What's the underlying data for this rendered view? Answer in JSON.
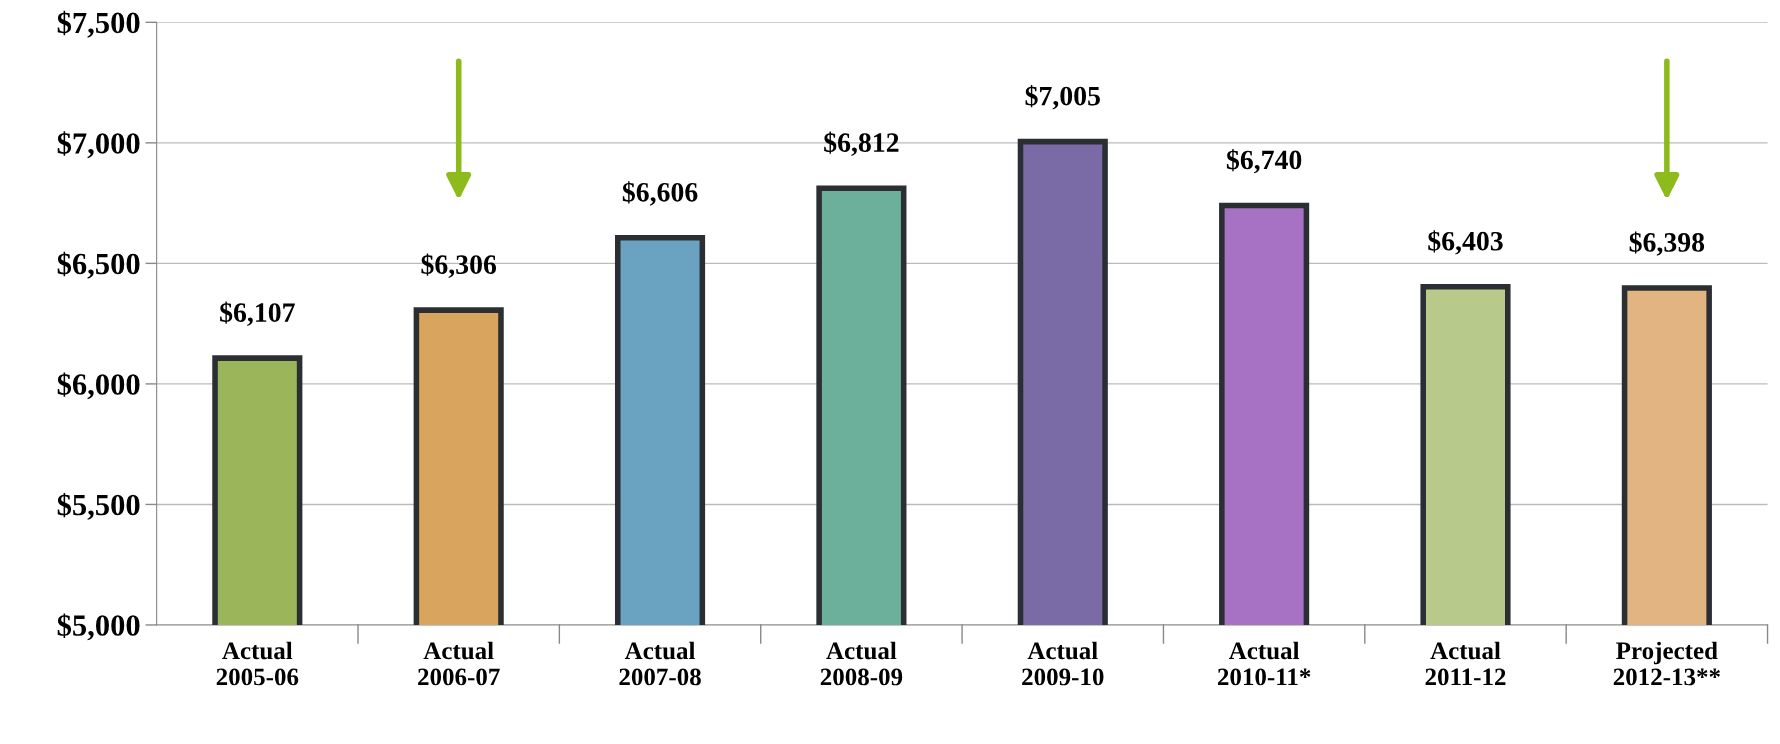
{
  "chart_data": {
    "type": "bar",
    "categories": [
      "Actual\n2005-06",
      "Actual\n2006-07",
      "Actual\n2007-08",
      "Actual\n2008-09",
      "Actual\n2009-10",
      "Actual\n2010-11*",
      "Actual\n2011-12",
      "Projected\n2012-13**"
    ],
    "values": [
      6107,
      6306,
      6606,
      6812,
      7005,
      6740,
      6403,
      6398
    ],
    "value_labels": [
      "$6,107",
      "$6,306",
      "$6,606",
      "$6,812",
      "$7,005",
      "$6,740",
      "$6,403",
      "$6,398"
    ],
    "colors": [
      "#9bb55a",
      "#d9a45e",
      "#6aa2c2",
      "#6cb09b",
      "#7a6aa6",
      "#a772c4",
      "#b7ca8c",
      "#e2b482"
    ],
    "ylim": [
      5000,
      7500
    ],
    "yticks": [
      {
        "value": 5000,
        "label": "$5,000"
      },
      {
        "value": 5500,
        "label": "$5,500"
      },
      {
        "value": 6000,
        "label": "$6,000"
      },
      {
        "value": 6500,
        "label": "$6,500"
      },
      {
        "value": 7000,
        "label": "$7,000"
      },
      {
        "value": 7500,
        "label": "$7,500"
      }
    ],
    "grid": "y"
  }
}
